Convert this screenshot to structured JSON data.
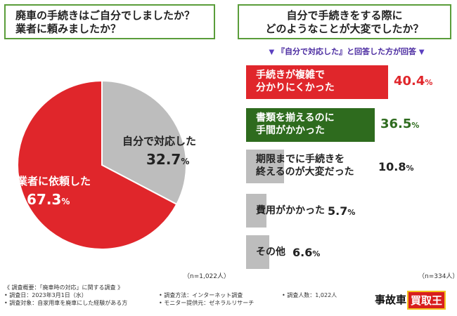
{
  "left_title": {
    "line1": "廃車の手続きはご自分でしましたか？",
    "line2": "業者に頼みましたか？"
  },
  "right_title": {
    "line1": "自分で手続きをする際に",
    "line2": "どのようなことが大変でしたか？"
  },
  "right_subtitle": "『自分で対応した』と回答した方が回答",
  "n_left": "（n=1,022人）",
  "n_right": "（n=334人）",
  "footer": {
    "line1": "《 調査概要：「廃車時の対応」に関する調査 》",
    "date": "• 調査日：2023年3月1日（水）",
    "target": "• 調査対象：自家用車を廃車にした経験がある方",
    "method": "• 調査方法：インターネット調査",
    "provider": "• モニター提供元：ゼネラルリサーチ",
    "count": "• 調査人数：1,022人"
  },
  "logo": {
    "part1": "事故車",
    "part2": "買取王"
  },
  "colors": {
    "red": "#e0262b",
    "green": "#2e6b1e",
    "gray": "#bdbdbd",
    "banner_border": "#5a9d3a"
  },
  "chart_data": [
    {
      "type": "pie",
      "slices": [
        {
          "label": "業者に依頼した",
          "value": 67.3,
          "display": "67.3",
          "color": "#e0262b"
        },
        {
          "label": "自分で対応した",
          "value": 32.7,
          "display": "32.7",
          "color": "#bdbdbd"
        }
      ],
      "unit": "%"
    },
    {
      "type": "bar",
      "orientation": "horizontal",
      "categories": [
        "手続きが複雑で\n分かりにくかった",
        "書類を揃えるのに\n手間がかかった",
        "期限までに手続きを\n終えるのが大変だった",
        "費用がかかった",
        "その他"
      ],
      "values": [
        40.4,
        36.5,
        10.8,
        5.7,
        6.6
      ],
      "value_labels": [
        "40.4",
        "36.5",
        "10.8",
        "5.7",
        "6.6"
      ],
      "colors": [
        "#e0262b",
        "#2e6b1e",
        "#bdbdbd",
        "#bdbdbd",
        "#bdbdbd"
      ],
      "unit": "%"
    }
  ]
}
